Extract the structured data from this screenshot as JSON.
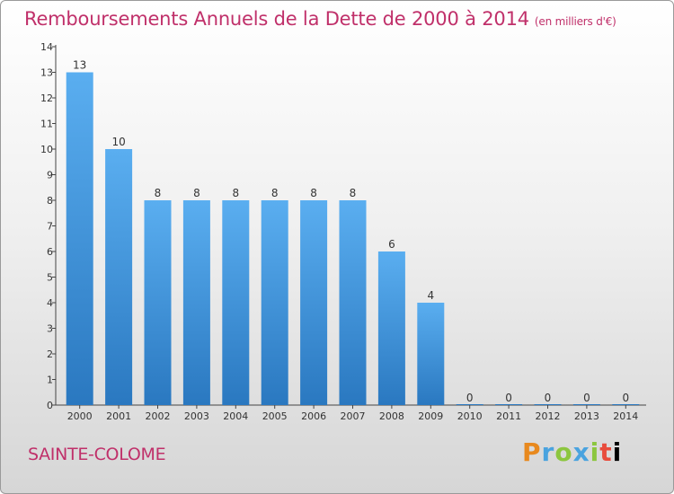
{
  "chart_data": {
    "type": "bar",
    "title": "Remboursements Annuels de la Dette de 2000 à 2014",
    "subtitle": "(en milliers d'€)",
    "xlabel": "",
    "ylabel": "",
    "ylim": [
      0,
      14
    ],
    "yticks": [
      0,
      1,
      2,
      3,
      4,
      5,
      6,
      7,
      8,
      9,
      10,
      11,
      12,
      13,
      14
    ],
    "grid": false,
    "categories": [
      "2000",
      "2001",
      "2002",
      "2003",
      "2004",
      "2005",
      "2006",
      "2007",
      "2008",
      "2009",
      "2010",
      "2011",
      "2012",
      "2013",
      "2014"
    ],
    "values": [
      13,
      10,
      8,
      8,
      8,
      8,
      8,
      8,
      6,
      4,
      0,
      0,
      0,
      0,
      0
    ],
    "bar_color": "#3a8fd8"
  },
  "commune": "SAINTE-COLOME",
  "logo": {
    "letters": [
      "P",
      "r",
      "o",
      "x",
      "i",
      "t",
      "i"
    ]
  },
  "colors": {
    "title": "#c0306a",
    "bar_top": "#5aaef0",
    "bar_bottom": "#2a78c0"
  }
}
